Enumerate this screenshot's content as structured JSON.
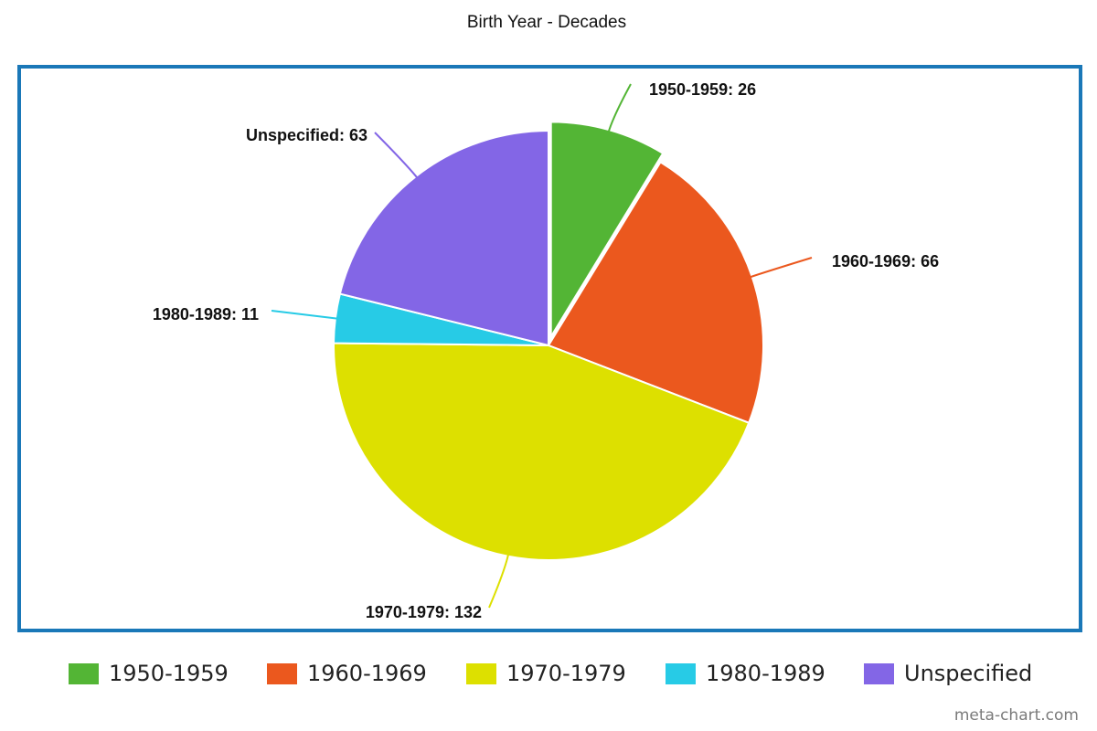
{
  "chart_data": {
    "type": "pie",
    "title": "Birth Year - Decades",
    "slices": [
      {
        "name": "1950-1959",
        "value": 26,
        "color": "#53b535",
        "label": "1950-1959: 26",
        "exploded": true
      },
      {
        "name": "1960-1969",
        "value": 66,
        "color": "#eb581e",
        "label": "1960-1969: 66",
        "exploded": false
      },
      {
        "name": "1970-1979",
        "value": 132,
        "color": "#dde000",
        "label": "1970-1979: 132",
        "exploded": false
      },
      {
        "name": "1980-1989",
        "value": 11,
        "color": "#27cbe6",
        "label": "1980-1989: 11",
        "exploded": false
      },
      {
        "name": "Unspecified",
        "value": 63,
        "color": "#8366e6",
        "label": "Unspecified: 63",
        "exploded": false
      }
    ],
    "legend_position": "bottom",
    "border_color": "#1a78b8"
  },
  "credit": "meta-chart.com"
}
